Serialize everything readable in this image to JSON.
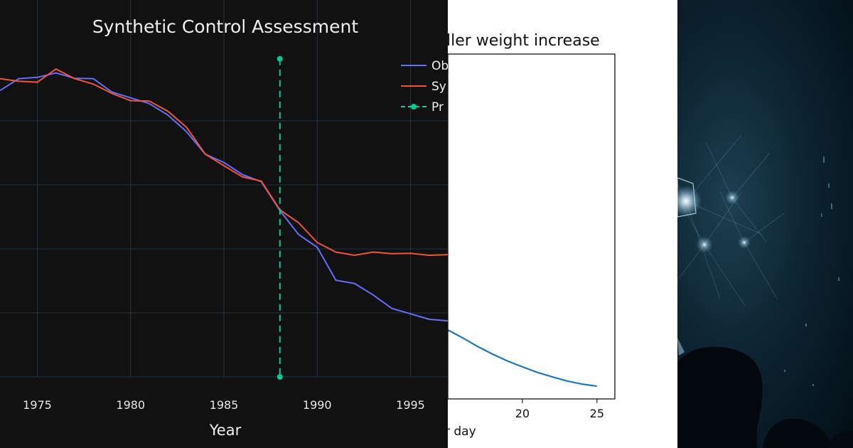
{
  "chart_data": [
    {
      "type": "line",
      "title": "Synthetic Control Assessment",
      "xlabel": "Year",
      "x_ticks": [
        "1975",
        "1980",
        "1985",
        "1990",
        "1995"
      ],
      "xlim": [
        1973,
        1997
      ],
      "ylim": [
        0,
        1
      ],
      "legend_position": "top-right",
      "legend": [
        "Ob",
        "Sy",
        "Pr"
      ],
      "grid": true,
      "series": [
        {
          "name": "Ob",
          "color": "#636efa",
          "x": [
            1973,
            1974,
            1975,
            1976,
            1977,
            1978,
            1979,
            1980,
            1981,
            1982,
            1983,
            1984,
            1985,
            1986,
            1987,
            1988,
            1989,
            1990,
            1991,
            1992,
            1993,
            1994,
            1995,
            1996,
            1997
          ],
          "y": [
            0.895,
            0.932,
            0.936,
            0.95,
            0.933,
            0.932,
            0.89,
            0.872,
            0.854,
            0.818,
            0.766,
            0.696,
            0.67,
            0.632,
            0.61,
            0.52,
            0.445,
            0.405,
            0.302,
            0.292,
            0.256,
            0.214,
            0.197,
            0.18,
            0.175
          ]
        },
        {
          "name": "Sy",
          "color": "#ef553b",
          "x": [
            1973,
            1974,
            1975,
            1976,
            1977,
            1978,
            1979,
            1980,
            1981,
            1982,
            1983,
            1984,
            1985,
            1986,
            1987,
            1988,
            1989,
            1990,
            1991,
            1992,
            1993,
            1994,
            1995,
            1996,
            1997
          ],
          "y": [
            0.932,
            0.924,
            0.921,
            0.962,
            0.932,
            0.915,
            0.886,
            0.863,
            0.862,
            0.83,
            0.78,
            0.696,
            0.66,
            0.625,
            0.612,
            0.522,
            0.482,
            0.42,
            0.39,
            0.38,
            0.39,
            0.385,
            0.386,
            0.38,
            0.382
          ]
        },
        {
          "name": "Pr",
          "color": "#00cc96",
          "dash": "dash",
          "markers": true,
          "x": [
            1988,
            1988
          ],
          "y": [
            0.994,
            0.0
          ]
        }
      ]
    },
    {
      "type": "line",
      "title": "ller weight increase",
      "xlabel": "r day",
      "x_ticks": [
        "20",
        "25"
      ],
      "xlim": [
        15,
        26.2
      ],
      "ylim": [
        0,
        1
      ],
      "grid": false,
      "series": [
        {
          "color": "#1f77b4",
          "x": [
            15,
            16,
            17,
            18,
            19,
            20,
            21,
            22,
            23,
            24,
            25
          ],
          "y": [
            0.2,
            0.177,
            0.152,
            0.13,
            0.11,
            0.093,
            0.077,
            0.064,
            0.052,
            0.043,
            0.037
          ]
        }
      ]
    }
  ]
}
